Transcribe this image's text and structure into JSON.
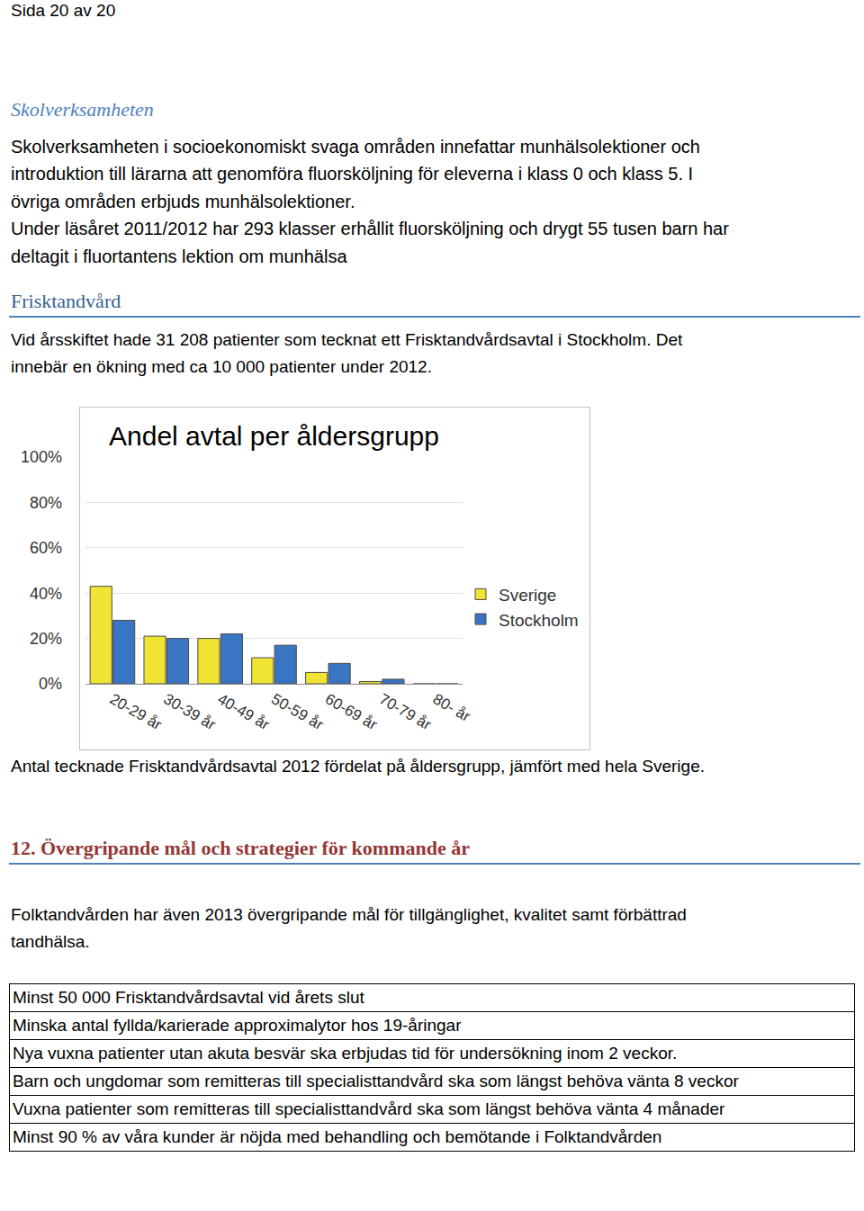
{
  "page_label": "Sida 20 av 20",
  "school": {
    "heading": "Skolverksamheten",
    "lines": [
      "Skolverksamheten i socioekonomiskt svaga områden innefattar munhälsolektioner och",
      "introduktion till lärarna att genomföra fluorsköljning för eleverna i klass 0 och klass 5. I",
      "övriga områden erbjuds munhälsolektioner.",
      "Under läsåret 2011/2012 har 293 klasser erhållit fluorsköljning och drygt 55 tusen barn har",
      "deltagit i fluortantens lektion om munhälsa"
    ]
  },
  "frisk": {
    "heading": "Frisktandvård",
    "lines": [
      "Vid årsskiftet hade 31 208 patienter som tecknat ett Frisktandvårdsavtal i Stockholm. Det",
      "innebär en ökning med ca 10 000 patienter under 2012."
    ]
  },
  "chart_data": {
    "type": "bar",
    "title": "Andel avtal per åldersgrupp",
    "categories": [
      "20-29 år",
      "30-39 år",
      "40-49 år",
      "50-59 år",
      "60-69 år",
      "70-79 år",
      "80- år"
    ],
    "series": [
      {
        "name": "Sverige",
        "color": "#f0e432",
        "values": [
          43,
          21,
          20,
          11.5,
          5,
          1,
          0
        ]
      },
      {
        "name": "Stockholm",
        "color": "#3a75c4",
        "values": [
          28,
          20,
          22,
          17,
          9,
          2,
          0
        ]
      }
    ],
    "ylim": [
      0,
      100
    ],
    "yticks": [
      {
        "value": 0,
        "label": "0%"
      },
      {
        "value": 20,
        "label": "20%"
      },
      {
        "value": 40,
        "label": "40%"
      },
      {
        "value": 60,
        "label": "60%"
      },
      {
        "value": 80,
        "label": "80%"
      },
      {
        "value": 100,
        "label": "100%"
      }
    ],
    "grid": true,
    "legend": "right"
  },
  "caption": "Antal tecknade Frisktandvårdsavtal 2012 fördelat på åldersgrupp, jämfört med hela Sverige.",
  "goals": {
    "heading": "12. Övergripande mål och strategier för kommande år",
    "lines": [
      "Folktandvården har även 2013 övergripande mål för tillgänglighet, kvalitet samt förbättrad",
      "tandhälsa."
    ],
    "rows": [
      "Minst 50 000 Frisktandvårdsavtal vid årets slut",
      "Minska antal fyllda/karierade approximalytor hos 19-åringar",
      "Nya vuxna patienter utan akuta besvär ska erbjudas tid för undersökning inom 2 veckor.",
      "Barn och ungdomar som remitteras till specialisttandvård ska som längst behöva vänta 8 veckor",
      "Vuxna patienter som remitteras till specialisttandvård ska som längst behöva vänta 4 månader",
      "Minst 90 % av våra kunder är nöjda med behandling och bemötande i Folktandvården"
    ]
  }
}
